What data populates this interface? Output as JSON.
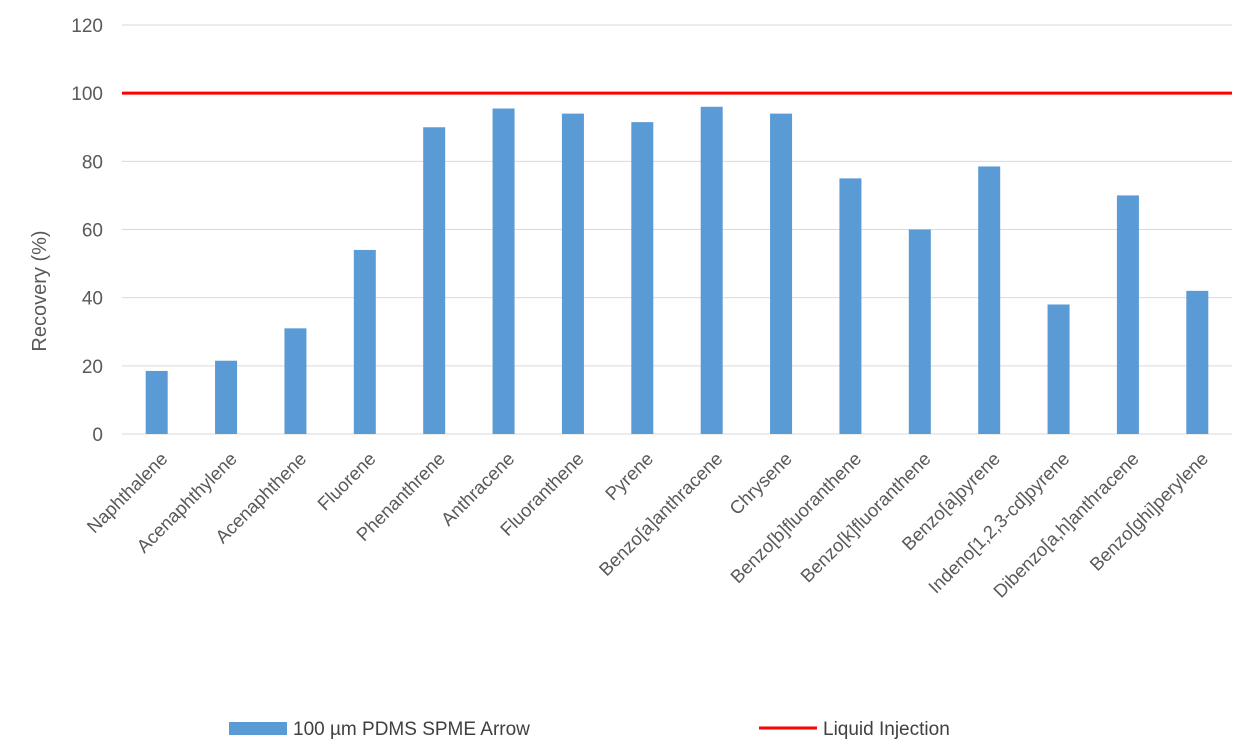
{
  "chart_data": {
    "type": "bar",
    "title": "",
    "xlabel": "",
    "ylabel": "Recovery (%)",
    "ylim": [
      0,
      120
    ],
    "yticks": [
      0,
      20,
      40,
      60,
      80,
      100,
      120
    ],
    "grid": true,
    "legend_position": "bottom",
    "categories": [
      "Naphthalene",
      "Acenaphthylene",
      "Acenaphthene",
      "Fluorene",
      "Phenanthrene",
      "Anthracene",
      "Fluoranthene",
      "Pyrene",
      "Benzo[a]anthracene",
      "Chrysene",
      "Benzo[b]fluoranthene",
      "Benzo[k]fluoranthene",
      "Benzo[a]pyrene",
      "Indeno[1,2,3-cd]pyrene",
      "Dibenzo[a,h]anthracene",
      "Benzo[ghi]perylene"
    ],
    "series": [
      {
        "name": "100 µm PDMS SPME Arrow",
        "kind": "bar",
        "color": "#5b9bd5",
        "values": [
          18.5,
          21.5,
          31,
          54,
          90,
          95.5,
          94,
          91.5,
          96,
          94,
          75,
          60,
          78.5,
          38,
          70,
          42
        ]
      },
      {
        "name": "Liquid Injection",
        "kind": "line",
        "color": "#ff0000",
        "value": 100
      }
    ]
  }
}
